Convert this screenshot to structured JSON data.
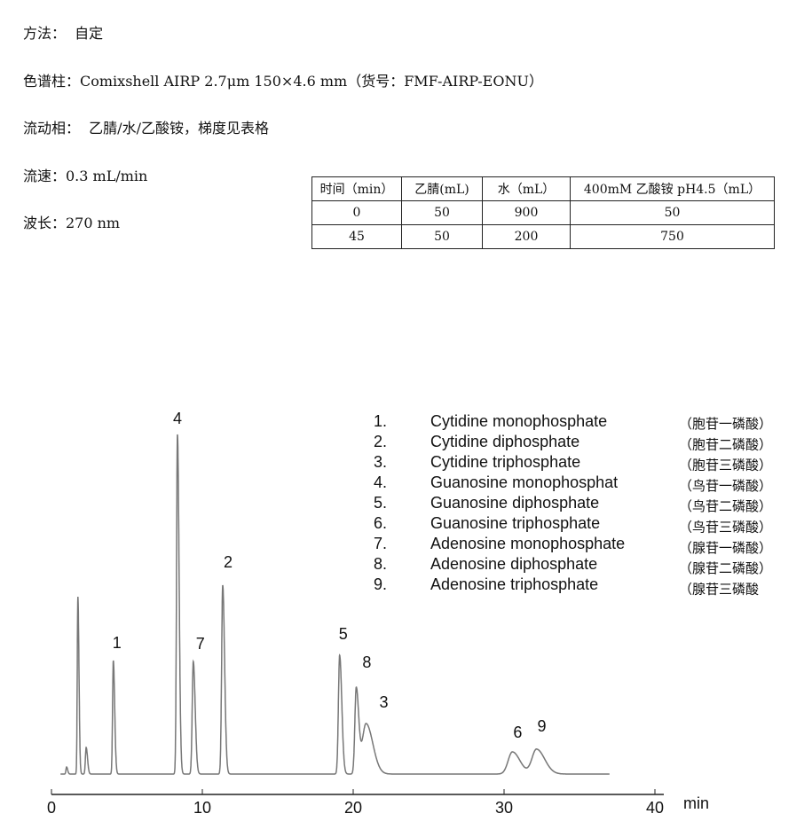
{
  "conditions": {
    "method": "方法：  自定",
    "column": "色谱柱：Comixshell AIRP 2.7μm 150×4.6 mm（货号：FMF-AIRP-EONU）",
    "mobile_phase": "流动相：  乙腈/水/乙酸铵，梯度见表格",
    "flow_rate": "流速：0.3 mL/min",
    "wavelength": "波长：270 nm"
  },
  "gradient_table": {
    "headers": [
      "时间（min）",
      "乙腈(mL)",
      "水（mL）",
      "400mM 乙酸铵  pH4.5（mL）"
    ],
    "rows": [
      [
        "0",
        "50",
        "900",
        "50"
      ],
      [
        "45",
        "50",
        "200",
        "750"
      ]
    ]
  },
  "chart_data": {
    "type": "line",
    "xlabel": "min",
    "xlim": [
      0,
      40
    ],
    "xticks": [
      "0",
      "10",
      "20",
      "30",
      "40"
    ],
    "grid": false,
    "y_axis_shown": false,
    "line_color": "#777777",
    "peaks": [
      {
        "label": "",
        "rt": 1.0,
        "height": 8,
        "width": 0.04
      },
      {
        "label": "",
        "rt": 1.75,
        "height": 200,
        "width": 0.04
      },
      {
        "label": "",
        "rt": 2.3,
        "height": 30,
        "width": 0.05
      },
      {
        "label": "1",
        "rt": 4.1,
        "height": 128,
        "width": 0.05
      },
      {
        "label": "4",
        "rt": 8.35,
        "height": 383,
        "width": 0.06
      },
      {
        "label": "7",
        "rt": 9.4,
        "height": 127,
        "width": 0.07
      },
      {
        "label": "2",
        "rt": 11.35,
        "height": 213,
        "width": 0.07
      },
      {
        "label": "5",
        "rt": 19.1,
        "height": 134,
        "width": 0.08
      },
      {
        "label": "8",
        "rt": 20.2,
        "height": 96,
        "width": 0.09
      },
      {
        "label": "3",
        "rt": 20.85,
        "height": 57,
        "width": 0.25
      },
      {
        "label": "6",
        "rt": 30.55,
        "height": 25,
        "width": 0.28
      },
      {
        "label": "9",
        "rt": 32.15,
        "height": 28,
        "width": 0.3
      }
    ],
    "trace_end": 37,
    "legend": [
      {
        "num": "1.",
        "name": "Cytidine monophosphate",
        "cn": "（胞苷一磷酸）"
      },
      {
        "num": "2.",
        "name": "Cytidine diphosphate",
        "cn": "（胞苷二磷酸）"
      },
      {
        "num": "3.",
        "name": "Cytidine triphosphate",
        "cn": "（胞苷三磷酸）"
      },
      {
        "num": "4.",
        "name": "Guanosine monophosphat",
        "cn": "（鸟苷一磷酸）"
      },
      {
        "num": "5.",
        "name": "Guanosine diphosphate",
        "cn": "（鸟苷二磷酸）"
      },
      {
        "num": "6.",
        "name": "Guanosine triphosphate",
        "cn": "（鸟苷三磷酸）"
      },
      {
        "num": "7.",
        "name": "Adenosine monophosphate",
        "cn": "（腺苷一磷酸）"
      },
      {
        "num": "8.",
        "name": "Adenosine diphosphate",
        "cn": "（腺苷二磷酸）"
      },
      {
        "num": "9.",
        "name": "Adenosine triphosphate",
        "cn": "（腺苷三磷酸"
      }
    ]
  }
}
